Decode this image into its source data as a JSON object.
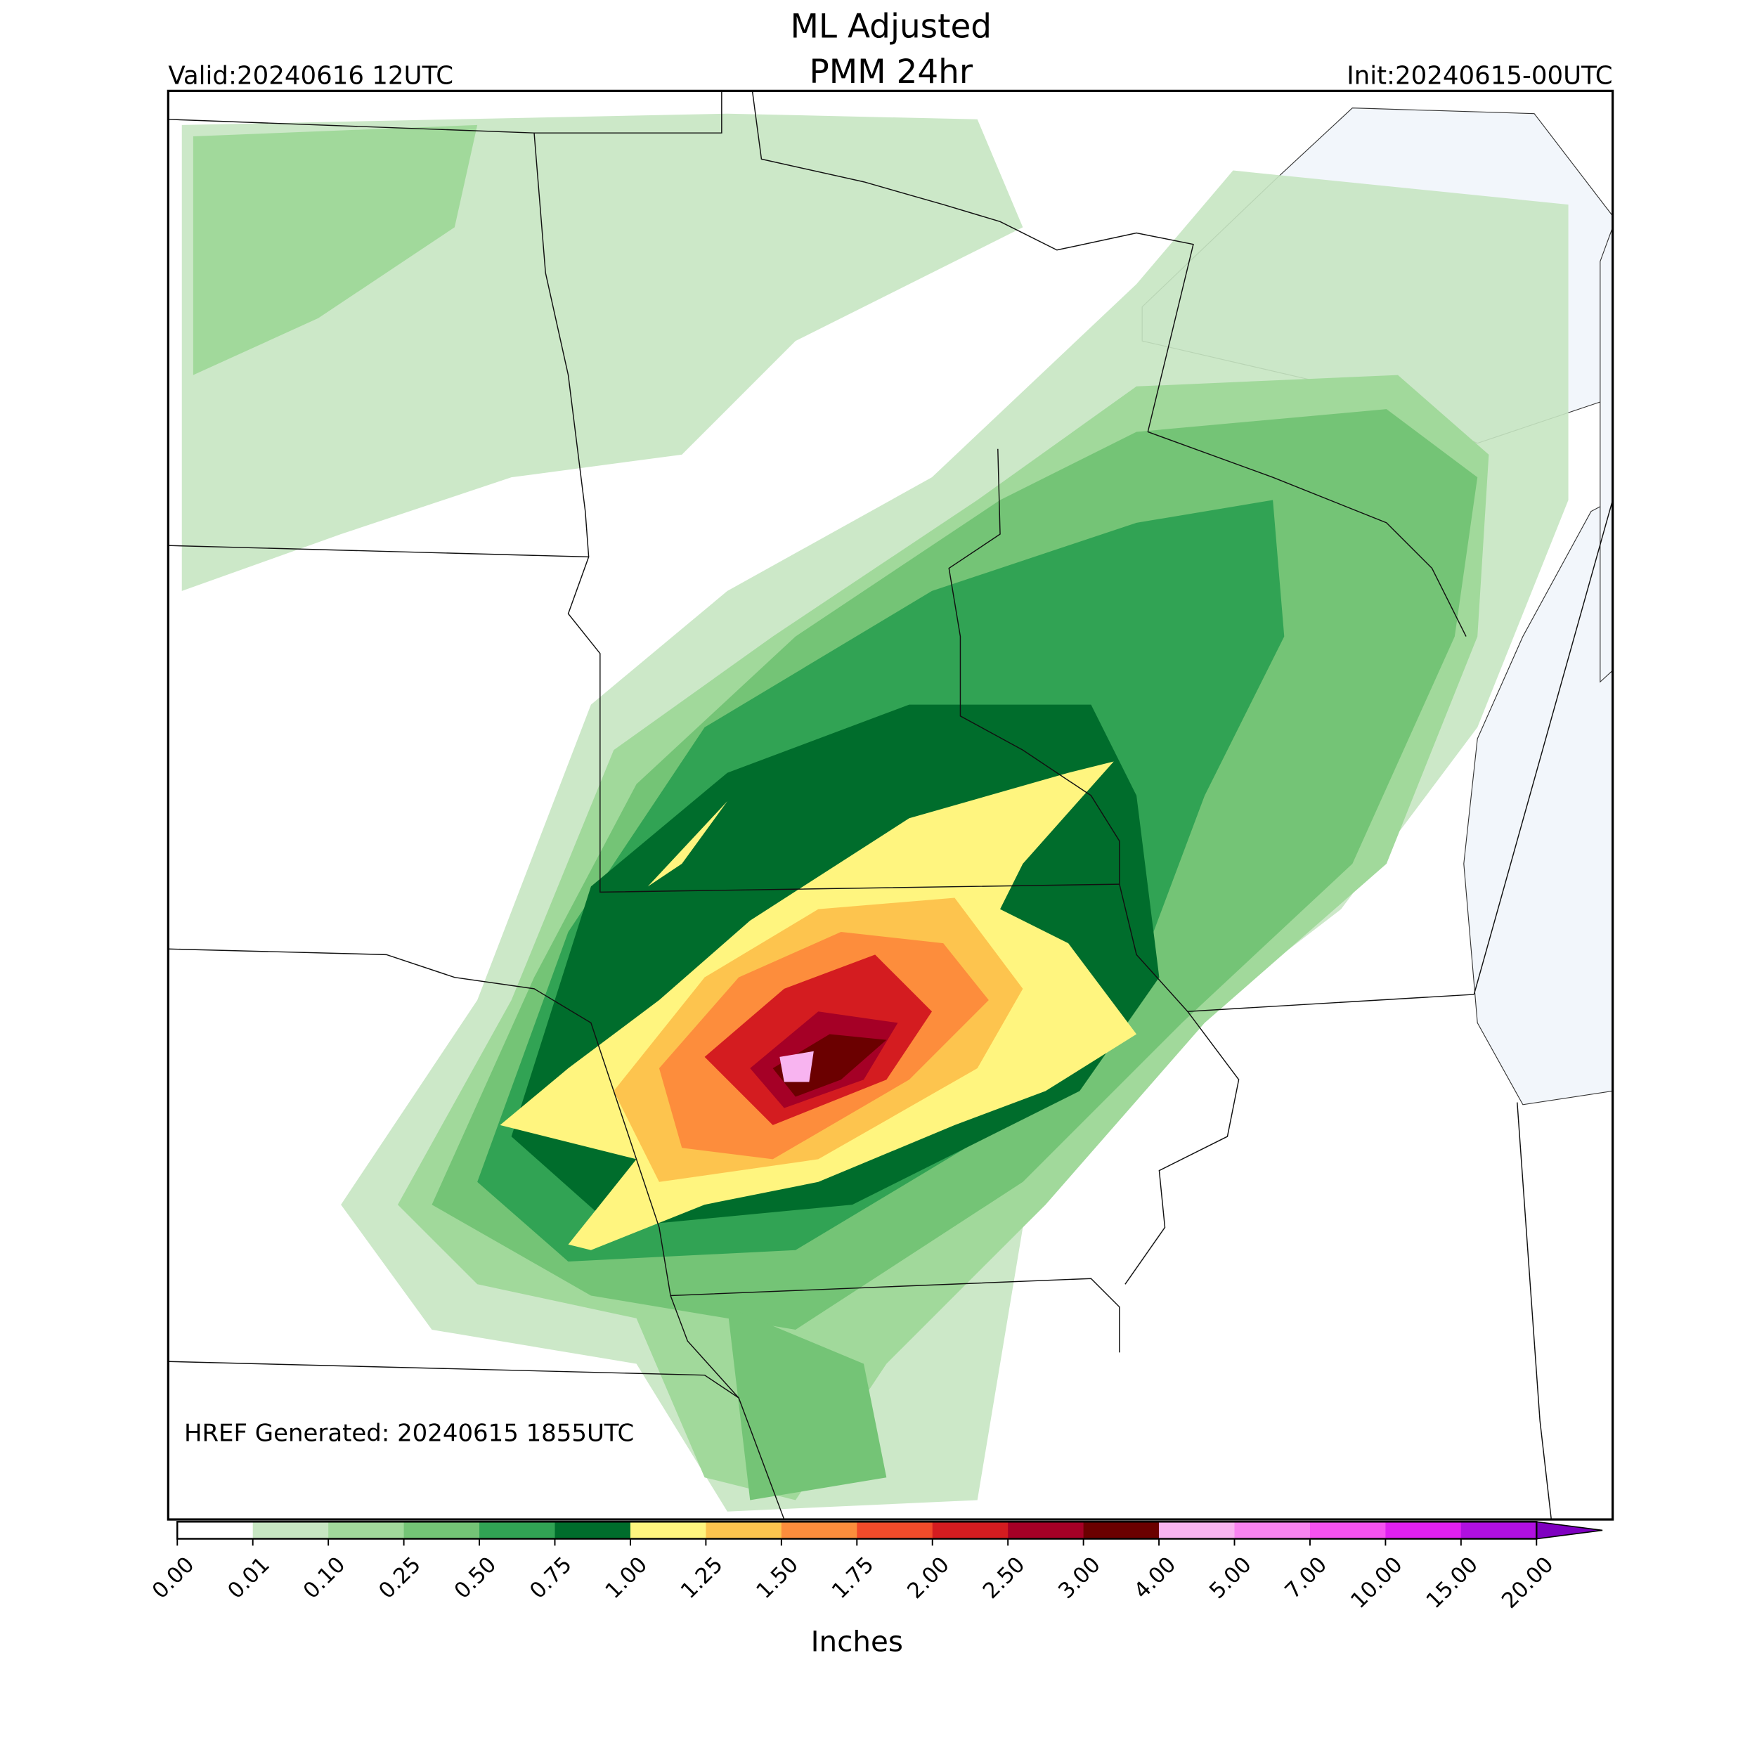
{
  "map": {
    "title": [
      "ML Adjusted",
      "PMM 24hr"
    ],
    "valid": "Valid:20240616 12UTC",
    "init": "Init:20240615-00UTC",
    "generated": "HREF Generated: 20240615 1855UTC",
    "colorbar": {
      "label": "Inches",
      "ticks": [
        {
          "value": 0,
          "label": "0.00"
        },
        {
          "value": 0.01,
          "label": "0.01"
        },
        {
          "value": 0.1,
          "label": "0.10"
        },
        {
          "value": 0.25,
          "label": "0.25"
        },
        {
          "value": 0.5,
          "label": "0.50"
        },
        {
          "value": 0.75,
          "label": "0.75"
        },
        {
          "value": 1,
          "label": "1.00"
        },
        {
          "value": 1.25,
          "label": "1.25"
        },
        {
          "value": 1.5,
          "label": "1.50"
        },
        {
          "value": 1.75,
          "label": "1.75"
        },
        {
          "value": 2,
          "label": "2.00"
        },
        {
          "value": 2.5,
          "label": "2.50"
        },
        {
          "value": 3,
          "label": "3.00"
        },
        {
          "value": 4,
          "label": "4.00"
        },
        {
          "value": 5,
          "label": "5.00"
        },
        {
          "value": 7,
          "label": "7.00"
        },
        {
          "value": 10,
          "label": "10.00"
        },
        {
          "value": 15,
          "label": "15.00"
        },
        {
          "value": 20,
          "label": "20.00"
        }
      ],
      "colors": [
        "#ffffff",
        "#c7e6c2",
        "#a1d99b",
        "#74c476",
        "#31a354",
        "#006d2c",
        "#fff57f",
        "#fdc44e",
        "#fd8d3c",
        "#f24b2a",
        "#d41c20",
        "#a50026",
        "#6b0000",
        "#f8b4f0",
        "#f884f0",
        "#f652f0",
        "#e020f0",
        "#b010e0"
      ],
      "extend_color": "#7f00c0"
    }
  }
}
